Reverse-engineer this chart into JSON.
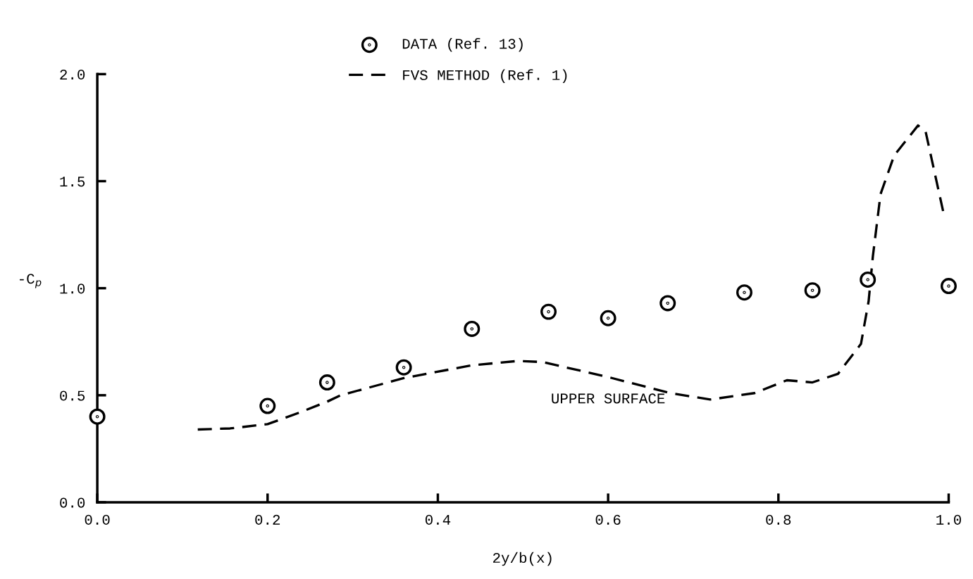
{
  "chart_data": {
    "type": "scatter",
    "xlabel": "2y/b(x)",
    "ylabel": "-C$_{p}$",
    "xlim": [
      0.0,
      1.0
    ],
    "ylim": [
      0.0,
      2.0
    ],
    "xticks": [
      {
        "value": 0.0,
        "label": "0.0"
      },
      0.2,
      0.4,
      0.6,
      0.8,
      {
        "value": 1.0,
        "label": "1.0"
      }
    ],
    "yticks": [
      {
        "value": 0.0,
        "label": "0.0"
      },
      0.5,
      {
        "value": 1.0,
        "label": "1.0"
      },
      1.5,
      {
        "value": 2.0,
        "label": "2.0"
      }
    ],
    "grid": false,
    "legend": "top",
    "annotations": [
      "UPPER SURFACE"
    ],
    "series": [
      {
        "name": "DATA (Ref. 13)",
        "marker": "circle",
        "color": "#000000",
        "x": [
          0.0,
          0.2,
          0.27,
          0.36,
          0.44,
          0.53,
          0.6,
          0.67,
          0.76,
          0.84,
          0.905,
          1.0
        ],
        "values": [
          0.4,
          0.45,
          0.56,
          0.63,
          0.81,
          0.89,
          0.86,
          0.93,
          0.98,
          0.99,
          1.04,
          1.01
        ]
      },
      {
        "name": "FVS METHOD (Ref. 1)",
        "type": "line",
        "line_style": "dashed",
        "color": "#000000",
        "x": [
          0.118,
          0.156,
          0.2,
          0.238,
          0.27,
          0.286,
          0.36,
          0.44,
          0.494,
          0.523,
          0.6,
          0.673,
          0.72,
          0.772,
          0.81,
          0.84,
          0.87,
          0.897,
          0.906,
          0.911,
          0.92,
          0.936,
          0.964,
          0.973,
          0.994
        ],
        "values": [
          0.34,
          0.345,
          0.365,
          0.42,
          0.47,
          0.5,
          0.58,
          0.64,
          0.66,
          0.655,
          0.585,
          0.51,
          0.48,
          0.51,
          0.57,
          0.56,
          0.6,
          0.74,
          0.94,
          1.15,
          1.44,
          1.62,
          1.76,
          1.73,
          1.35
        ]
      }
    ]
  }
}
